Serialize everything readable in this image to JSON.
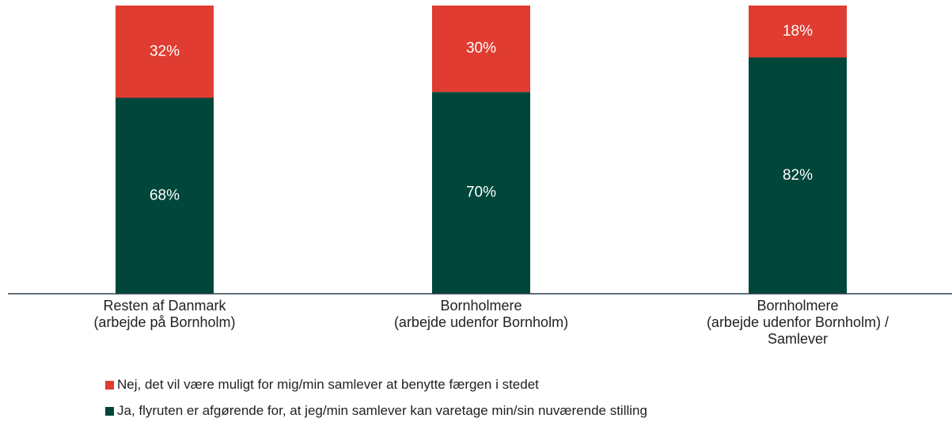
{
  "chart_data": {
    "type": "stacked_bar",
    "categories": [
      "Resten af Danmark\n(arbejde på Bornholm)",
      "Bornholmere\n(arbejde udenfor Bornholm)",
      "Bornholmere\n(arbejde udenfor Bornholm) /\nSamlever"
    ],
    "series": [
      {
        "name": "Ja, flyruten er afgørende for, at jeg/min samlever kan varetage min/sin nuværende stilling",
        "color": "#00463a",
        "values": [
          68,
          70,
          82
        ],
        "value_labels": [
          "68%",
          "70%",
          "82%"
        ]
      },
      {
        "name": "Nej, det vil være muligt for mig/min samlever at benytte færgen i stedet",
        "color": "#e03c31",
        "values": [
          32,
          30,
          18
        ],
        "value_labels": [
          "32%",
          "30%",
          "18%"
        ]
      }
    ],
    "ylim": [
      0,
      100
    ]
  }
}
